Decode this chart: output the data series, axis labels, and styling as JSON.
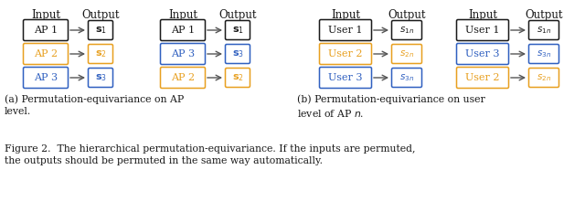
{
  "fig_width": 6.4,
  "fig_height": 2.44,
  "bg_color": "#ffffff",
  "colors": {
    "black": "#1a1a1a",
    "orange": "#E8A020",
    "blue": "#3060C0"
  },
  "caption": "Figure 2.  The hierarchical permutation-equivariance. If the inputs are permuted,\nthe outputs should be permuted in the same way automatically.",
  "subcap_a": "(a) Permutation-equivariance on AP\nlevel.",
  "subcap_b": "(b) Permutation-equivariance on user\nlevel of AP $n$."
}
